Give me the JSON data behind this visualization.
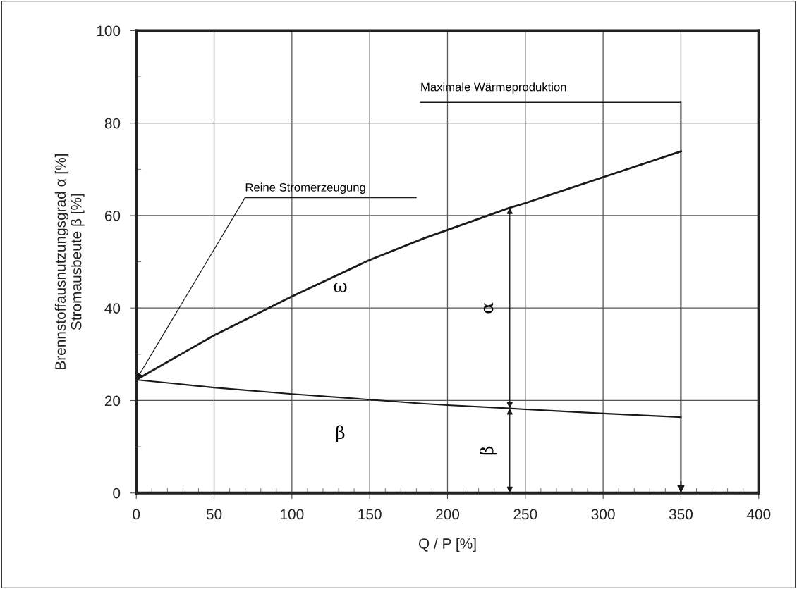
{
  "chart_data": {
    "type": "line",
    "xlabel": "Q / P [%]",
    "ylabel": "Brennstoffausnutzungsgrad α [%]\nStromausbeute β [%]",
    "x": [
      0,
      50,
      100,
      150,
      185,
      200,
      240,
      250,
      300,
      350
    ],
    "series": [
      {
        "name": "ω",
        "color": "#1a1a1a",
        "values": [
          24.5,
          34.1,
          42.5,
          50.4,
          55.1,
          56.9,
          61.7,
          62.7,
          68.3,
          73.9
        ]
      },
      {
        "name": "β",
        "color": "#1a1a1a",
        "values": [
          24.5,
          22.8,
          21.4,
          20.2,
          19.3,
          19.0,
          18.3,
          18.1,
          17.2,
          16.4
        ]
      }
    ],
    "xlim": [
      0,
      400
    ],
    "xticks": [
      0,
      50,
      100,
      150,
      200,
      250,
      300,
      350,
      400
    ],
    "ylim": [
      0,
      100
    ],
    "yticks": [
      0,
      20,
      40,
      60,
      80,
      100
    ],
    "grid": true,
    "marker": "none",
    "line_style": "solid",
    "legend": false,
    "ref_lines": [
      {
        "axis": "x",
        "value": 350,
        "label": "Maximale Wärmeproduktion",
        "color": "#1a1a1a"
      }
    ],
    "annotations": [
      {
        "text": "Reine Stromerzeugung",
        "x": 0,
        "y": 24.5
      },
      "α",
      "β"
    ]
  }
}
